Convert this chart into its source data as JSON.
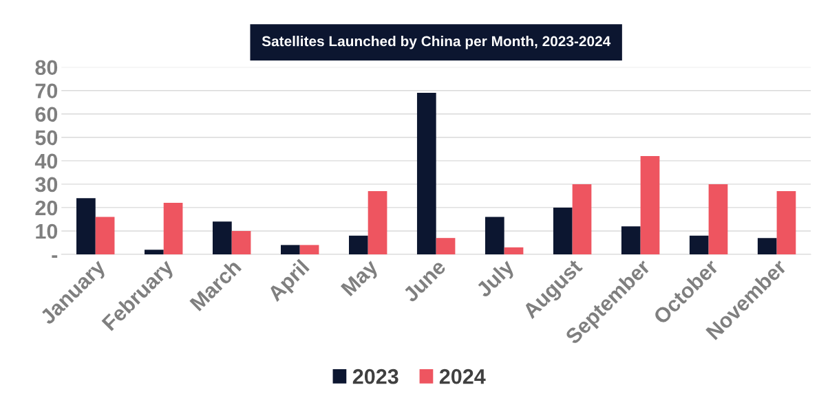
{
  "chart_data": {
    "type": "bar",
    "title": "Satellites Launched by China per Month, 2023-2024",
    "categories": [
      "January",
      "February",
      "March",
      "April",
      "May",
      "June",
      "July",
      "August",
      "September",
      "October",
      "November"
    ],
    "series": [
      {
        "name": "2023",
        "color": "#0c1630",
        "values": [
          24,
          2,
          14,
          4,
          8,
          69,
          16,
          20,
          12,
          8,
          7
        ]
      },
      {
        "name": "2024",
        "color": "#ee5560",
        "values": [
          16,
          22,
          10,
          4,
          27,
          7,
          3,
          30,
          42,
          30,
          27
        ]
      }
    ],
    "ylim": [
      0,
      80
    ],
    "yticks": [
      {
        "value": 0,
        "label": "-"
      },
      10,
      20,
      30,
      40,
      50,
      60,
      70,
      80
    ],
    "grid": "y",
    "legend": "bottom"
  }
}
